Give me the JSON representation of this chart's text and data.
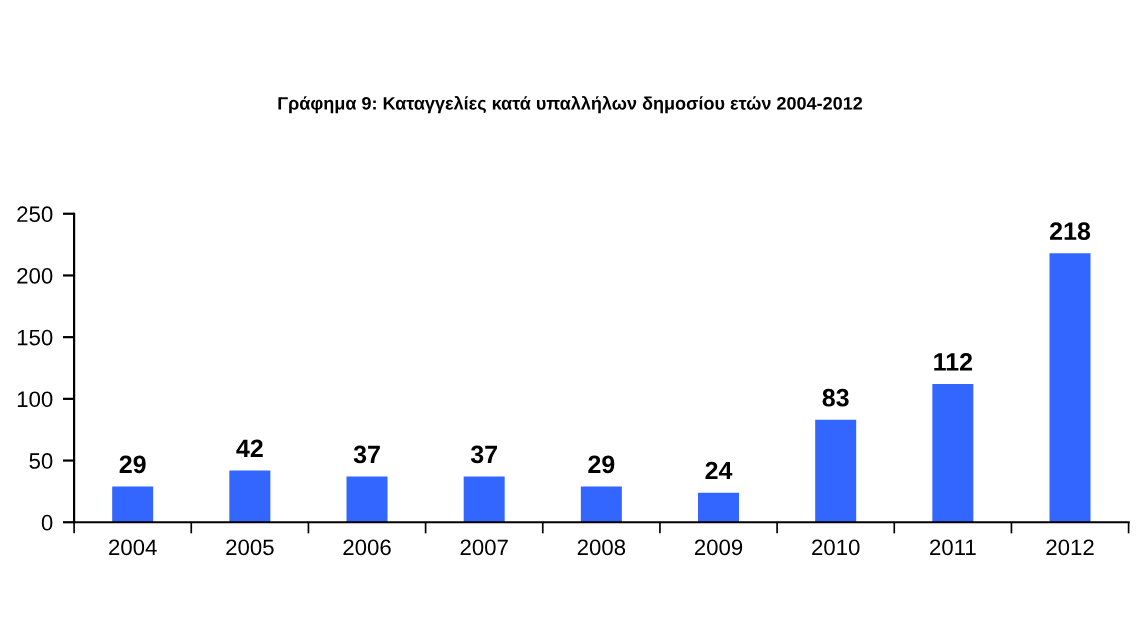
{
  "chart_data": {
    "type": "bar",
    "title": "Γράφημα 9: Καταγγελίες κατά υπαλλήλων δημοσίου ετών 2004-2012",
    "categories": [
      "2004",
      "2005",
      "2006",
      "2007",
      "2008",
      "2009",
      "2010",
      "2011",
      "2012"
    ],
    "values": [
      29,
      42,
      37,
      37,
      29,
      24,
      83,
      112,
      218
    ],
    "color": "#3366ff",
    "ylim": [
      0,
      250
    ],
    "yticks": [
      0,
      50,
      100,
      150,
      200,
      250
    ],
    "grid": false,
    "data_labels": true
  }
}
